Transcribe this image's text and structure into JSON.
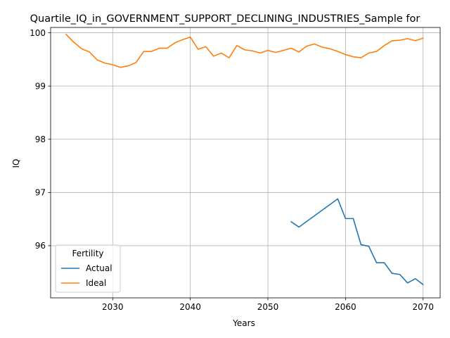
{
  "chart_data": {
    "type": "line",
    "title": "Quartile_IQ_in_GOVERNMENT_SUPPORT_DECLINING_INDUSTRIES_Sample for",
    "xlabel": "Years",
    "ylabel": "IQ",
    "xlim": [
      2022,
      2072.2
    ],
    "ylim": [
      95.02,
      100.1
    ],
    "xticks": [
      2030,
      2040,
      2050,
      2060,
      2070
    ],
    "yticks": [
      96,
      97,
      98,
      99,
      100
    ],
    "grid": true,
    "legend": {
      "title": "Fertility",
      "placement": "lower-left"
    },
    "series": [
      {
        "name": "Actual",
        "color": "#1f77b4",
        "x": [
          2053,
          2054,
          2059,
          2060,
          2061,
          2062,
          2063,
          2064,
          2065,
          2066,
          2067,
          2068,
          2069,
          2070
        ],
        "y": [
          96.45,
          96.35,
          96.88,
          96.51,
          96.51,
          96.02,
          95.99,
          95.68,
          95.68,
          95.48,
          95.46,
          95.3,
          95.38,
          95.27
        ]
      },
      {
        "name": "Ideal",
        "color": "#ff7f0e",
        "x": [
          2024,
          2025,
          2026,
          2027,
          2028,
          2029,
          2030,
          2031,
          2032,
          2033,
          2034,
          2035,
          2036,
          2037,
          2038,
          2039,
          2040,
          2041,
          2042,
          2043,
          2044,
          2045,
          2046,
          2047,
          2048,
          2049,
          2050,
          2051,
          2052,
          2053,
          2054,
          2055,
          2056,
          2057,
          2058,
          2059,
          2060,
          2061,
          2062,
          2063,
          2064,
          2065,
          2066,
          2067,
          2068,
          2069,
          2070
        ],
        "y": [
          99.97,
          99.82,
          99.7,
          99.64,
          99.49,
          99.43,
          99.4,
          99.35,
          99.38,
          99.44,
          99.65,
          99.65,
          99.71,
          99.71,
          99.81,
          99.87,
          99.92,
          99.69,
          99.74,
          99.56,
          99.62,
          99.53,
          99.76,
          99.68,
          99.66,
          99.62,
          99.67,
          99.63,
          99.67,
          99.71,
          99.64,
          99.75,
          99.79,
          99.73,
          99.7,
          99.65,
          99.59,
          99.55,
          99.53,
          99.62,
          99.65,
          99.76,
          99.85,
          99.86,
          99.89,
          99.85,
          99.9
        ]
      }
    ]
  }
}
